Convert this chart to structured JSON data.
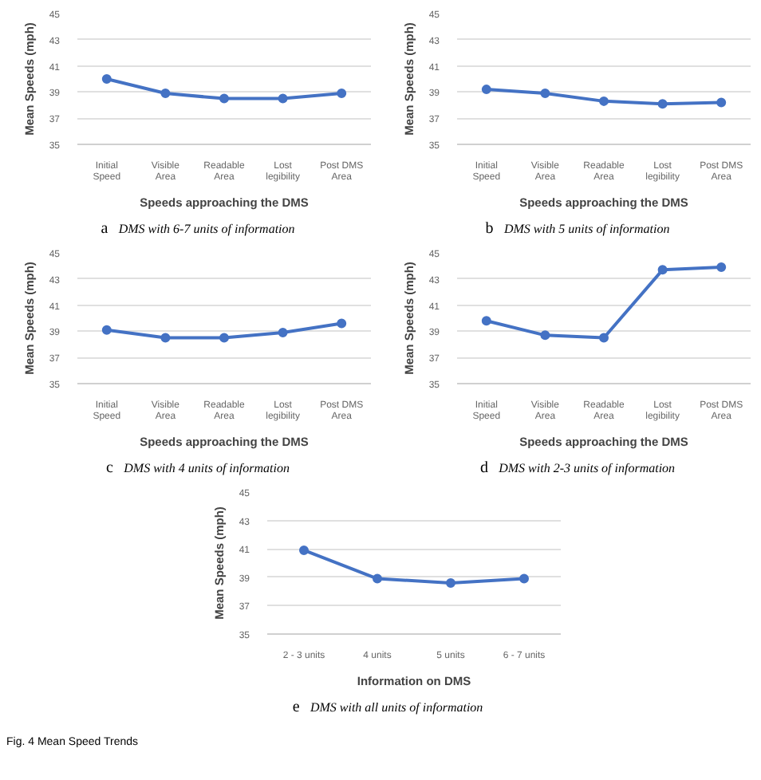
{
  "chart_data": [
    {
      "type": "line",
      "categories": [
        "Initial Speed",
        "Visible Area",
        "Readable Area",
        "Lost legibility",
        "Post DMS Area"
      ],
      "xlabel": "Speeds approaching the DMS",
      "ylabel": "Mean Speeds (mph)",
      "ylim": [
        35,
        45
      ],
      "yticks": [
        35,
        37,
        39,
        41,
        43,
        45
      ],
      "grid": "y",
      "marker": "circle",
      "line_style": "solid",
      "series": [
        {
          "color": "#4472c4",
          "values": [
            40.0,
            38.9,
            38.5,
            38.5,
            38.9
          ]
        }
      ],
      "annotations": [
        "a",
        "DMS with 6-7 units of information"
      ]
    },
    {
      "type": "line",
      "categories": [
        "Initial Speed",
        "Visible Area",
        "Readable Area",
        "Lost legibility",
        "Post DMS Area"
      ],
      "xlabel": "Speeds approaching the DMS",
      "ylabel": "Mean Speeds (mph)",
      "ylim": [
        35,
        45
      ],
      "yticks": [
        35,
        37,
        39,
        41,
        43,
        45
      ],
      "grid": "y",
      "marker": "circle",
      "line_style": "solid",
      "series": [
        {
          "color": "#4472c4",
          "values": [
            39.2,
            38.9,
            38.3,
            38.1,
            38.2
          ]
        }
      ],
      "annotations": [
        "b",
        "DMS with 5 units of information"
      ]
    },
    {
      "type": "line",
      "categories": [
        "Initial Speed",
        "Visible Area",
        "Readable Area",
        "Lost legibility",
        "Post DMS Area"
      ],
      "xlabel": "Speeds approaching the DMS",
      "ylabel": "Mean Speeds (mph)",
      "ylim": [
        35,
        45
      ],
      "yticks": [
        35,
        37,
        39,
        41,
        43,
        45
      ],
      "grid": "y",
      "marker": "circle",
      "line_style": "solid",
      "series": [
        {
          "color": "#4472c4",
          "values": [
            39.1,
            38.5,
            38.5,
            38.9,
            39.6
          ]
        }
      ],
      "annotations": [
        "c",
        "DMS with 4 units of information"
      ]
    },
    {
      "type": "line",
      "categories": [
        "Initial Speed",
        "Visible Area",
        "Readable Area",
        "Lost legibility",
        "Post DMS Area"
      ],
      "xlabel": "Speeds approaching the DMS",
      "ylabel": "Mean Speeds (mph)",
      "ylim": [
        35,
        45
      ],
      "yticks": [
        35,
        37,
        39,
        41,
        43,
        45
      ],
      "grid": "y",
      "marker": "circle",
      "line_style": "solid",
      "series": [
        {
          "color": "#4472c4",
          "values": [
            39.8,
            38.7,
            38.5,
            43.7,
            43.9
          ]
        }
      ],
      "annotations": [
        "d",
        "DMS with 2-3 units of information"
      ]
    },
    {
      "type": "line",
      "categories": [
        "2 - 3 units",
        "4 units",
        "5 units",
        "6 - 7 units"
      ],
      "xlabel": "Information on DMS",
      "ylabel": "Mean Speeds (mph)",
      "ylim": [
        35,
        45
      ],
      "yticks": [
        35,
        37,
        39,
        41,
        43,
        45
      ],
      "grid": "y",
      "marker": "circle",
      "line_style": "solid",
      "series": [
        {
          "color": "#4472c4",
          "values": [
            40.9,
            38.9,
            38.6,
            38.9
          ]
        }
      ],
      "annotations": [
        "e",
        "DMS with all units of information",
        "Fig. 4 Mean Speed Trends"
      ]
    }
  ]
}
